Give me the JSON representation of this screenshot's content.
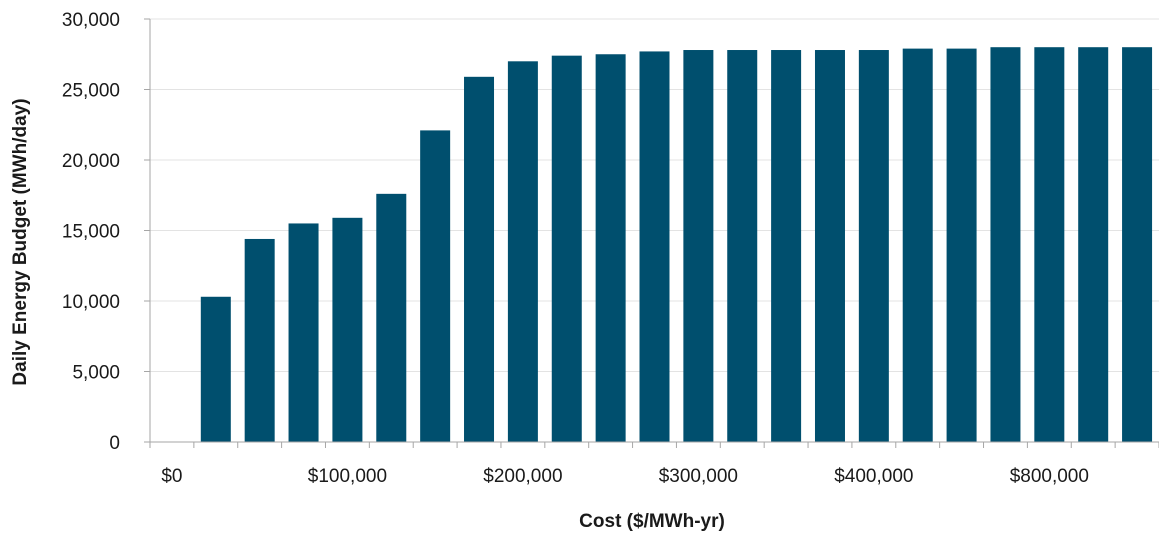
{
  "chart_data": {
    "type": "bar",
    "title": "",
    "xlabel": "Cost ($/MWh-yr)",
    "ylabel": "Daily Energy Budget (MWh/day)",
    "ylim": [
      0,
      30000
    ],
    "yticks": [
      "0",
      "5,000",
      "10,000",
      "15,000",
      "20,000",
      "25,000",
      "30,000"
    ],
    "ytick_values": [
      0,
      5000,
      10000,
      15000,
      20000,
      25000,
      30000
    ],
    "xtick_labels": [
      "$0",
      "$100,000",
      "$200,000",
      "$300,000",
      "$400,000",
      "$800,000"
    ],
    "xtick_positions": [
      0,
      4,
      8,
      12,
      16,
      20
    ],
    "grid": "horizontal",
    "bar_color": "#004f6e",
    "values": [
      0,
      10300,
      14400,
      15500,
      15900,
      17600,
      22100,
      25900,
      27000,
      27400,
      27500,
      27700,
      27800,
      27800,
      27800,
      27800,
      27800,
      27900,
      27900,
      28000,
      28000,
      28000,
      28000
    ]
  }
}
